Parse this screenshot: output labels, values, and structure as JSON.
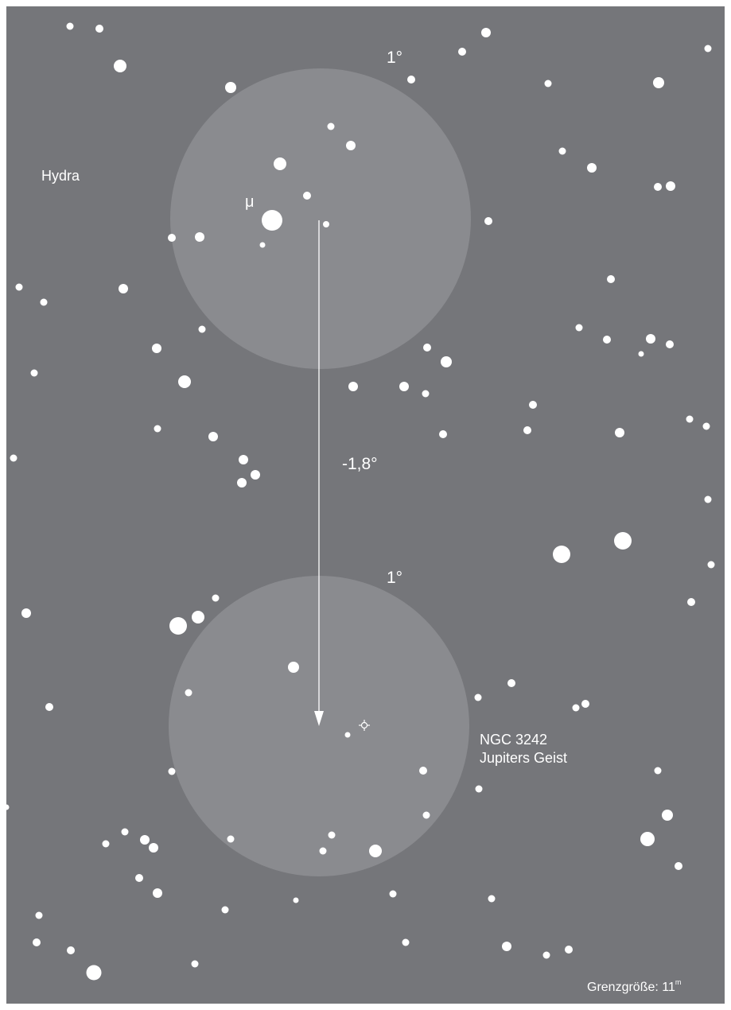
{
  "map": {
    "constellation": "Hydra",
    "star_label": "μ",
    "offset_label": "-1,8°",
    "fov_top_label": "1°",
    "fov_bottom_label": "1°",
    "target_name": "NGC 3242",
    "target_common_name": "Jupiters Geist",
    "limit_label": "Grenzgröße: 11",
    "limit_unit": "m"
  },
  "colors": {
    "background": "#75767a",
    "field_circle": "#8a8b8f",
    "star": "#ffffff",
    "page": "#ffffff"
  },
  "icons": {
    "target": "planetary-nebula-icon",
    "arrow": "arrow-down-icon"
  }
}
